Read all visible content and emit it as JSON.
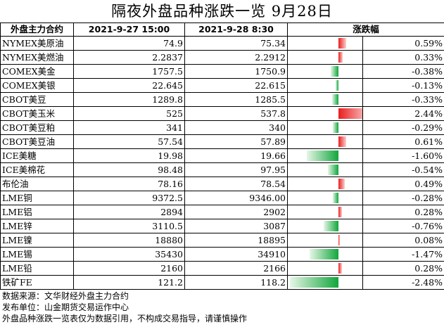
{
  "title": "隔夜外盘品种涨跌一览 9月28日",
  "headers": {
    "contract": "外盘主力合约",
    "prev": "2021-9-27 15:00",
    "curr": "2021-9-28 8:30",
    "change": "涨跌幅"
  },
  "rows": [
    {
      "name": "NYMEX美原油",
      "prev": "74.9",
      "curr": "75.34",
      "pct": "0.59%",
      "value": 0.59
    },
    {
      "name": "NYMEX美燃油",
      "prev": "2.2837",
      "curr": "2.2912",
      "pct": "0.33%",
      "value": 0.33
    },
    {
      "name": "COMEX美金",
      "prev": "1757.5",
      "curr": "1750.9",
      "pct": "-0.38%",
      "value": -0.38
    },
    {
      "name": "COMEX美银",
      "prev": "22.645",
      "curr": "22.615",
      "pct": "-0.13%",
      "value": -0.13
    },
    {
      "name": "CBOT美豆",
      "prev": "1289.8",
      "curr": "1285.5",
      "pct": "-0.33%",
      "value": -0.33
    },
    {
      "name": "CBOT美玉米",
      "prev": "525",
      "curr": "537.8",
      "pct": "2.44%",
      "value": 2.44
    },
    {
      "name": "CBOT美豆粕",
      "prev": "341",
      "curr": "340",
      "pct": "-0.29%",
      "value": -0.29
    },
    {
      "name": "CBOT美豆油",
      "prev": "57.54",
      "curr": "57.89",
      "pct": "0.61%",
      "value": 0.61
    },
    {
      "name": "ICE美糖",
      "prev": "19.98",
      "curr": "19.66",
      "pct": "-1.60%",
      "value": -1.6
    },
    {
      "name": "ICE美棉花",
      "prev": "98.48",
      "curr": "97.95",
      "pct": "-0.54%",
      "value": -0.54
    },
    {
      "name": "布伦油",
      "prev": "78.16",
      "curr": "78.54",
      "pct": "0.49%",
      "value": 0.49
    },
    {
      "name": "LME铜",
      "prev": "9372.5",
      "curr": "9346.00",
      "pct": "-0.28%",
      "value": -0.28
    },
    {
      "name": "LME铝",
      "prev": "2894",
      "curr": "2902",
      "pct": "0.28%",
      "value": 0.28
    },
    {
      "name": "LME锌",
      "prev": "3110.5",
      "curr": "3087",
      "pct": "-0.76%",
      "value": -0.76
    },
    {
      "name": "LME镍",
      "prev": "18880",
      "curr": "18895",
      "pct": "0.08%",
      "value": 0.08
    },
    {
      "name": "LME锡",
      "prev": "35430",
      "curr": "34910",
      "pct": "-1.47%",
      "value": -1.47
    },
    {
      "name": "LME铅",
      "prev": "2160",
      "curr": "2166",
      "pct": "0.28%",
      "value": 0.28
    },
    {
      "name": "铁矿FE",
      "prev": "121.2",
      "curr": "118.2",
      "pct": "-2.48%",
      "value": -2.48
    }
  ],
  "footer": {
    "source": "数据来源：文华财经外盘主力合约",
    "publisher": "发布单位：山金期货交易运作中心",
    "disclaimer": "外盘品种涨跌一览表仅为数据引用，不构成交易指导，请谨慎操作"
  },
  "colors": {
    "up": "#ea1e1e",
    "down": "#11a63c"
  }
}
